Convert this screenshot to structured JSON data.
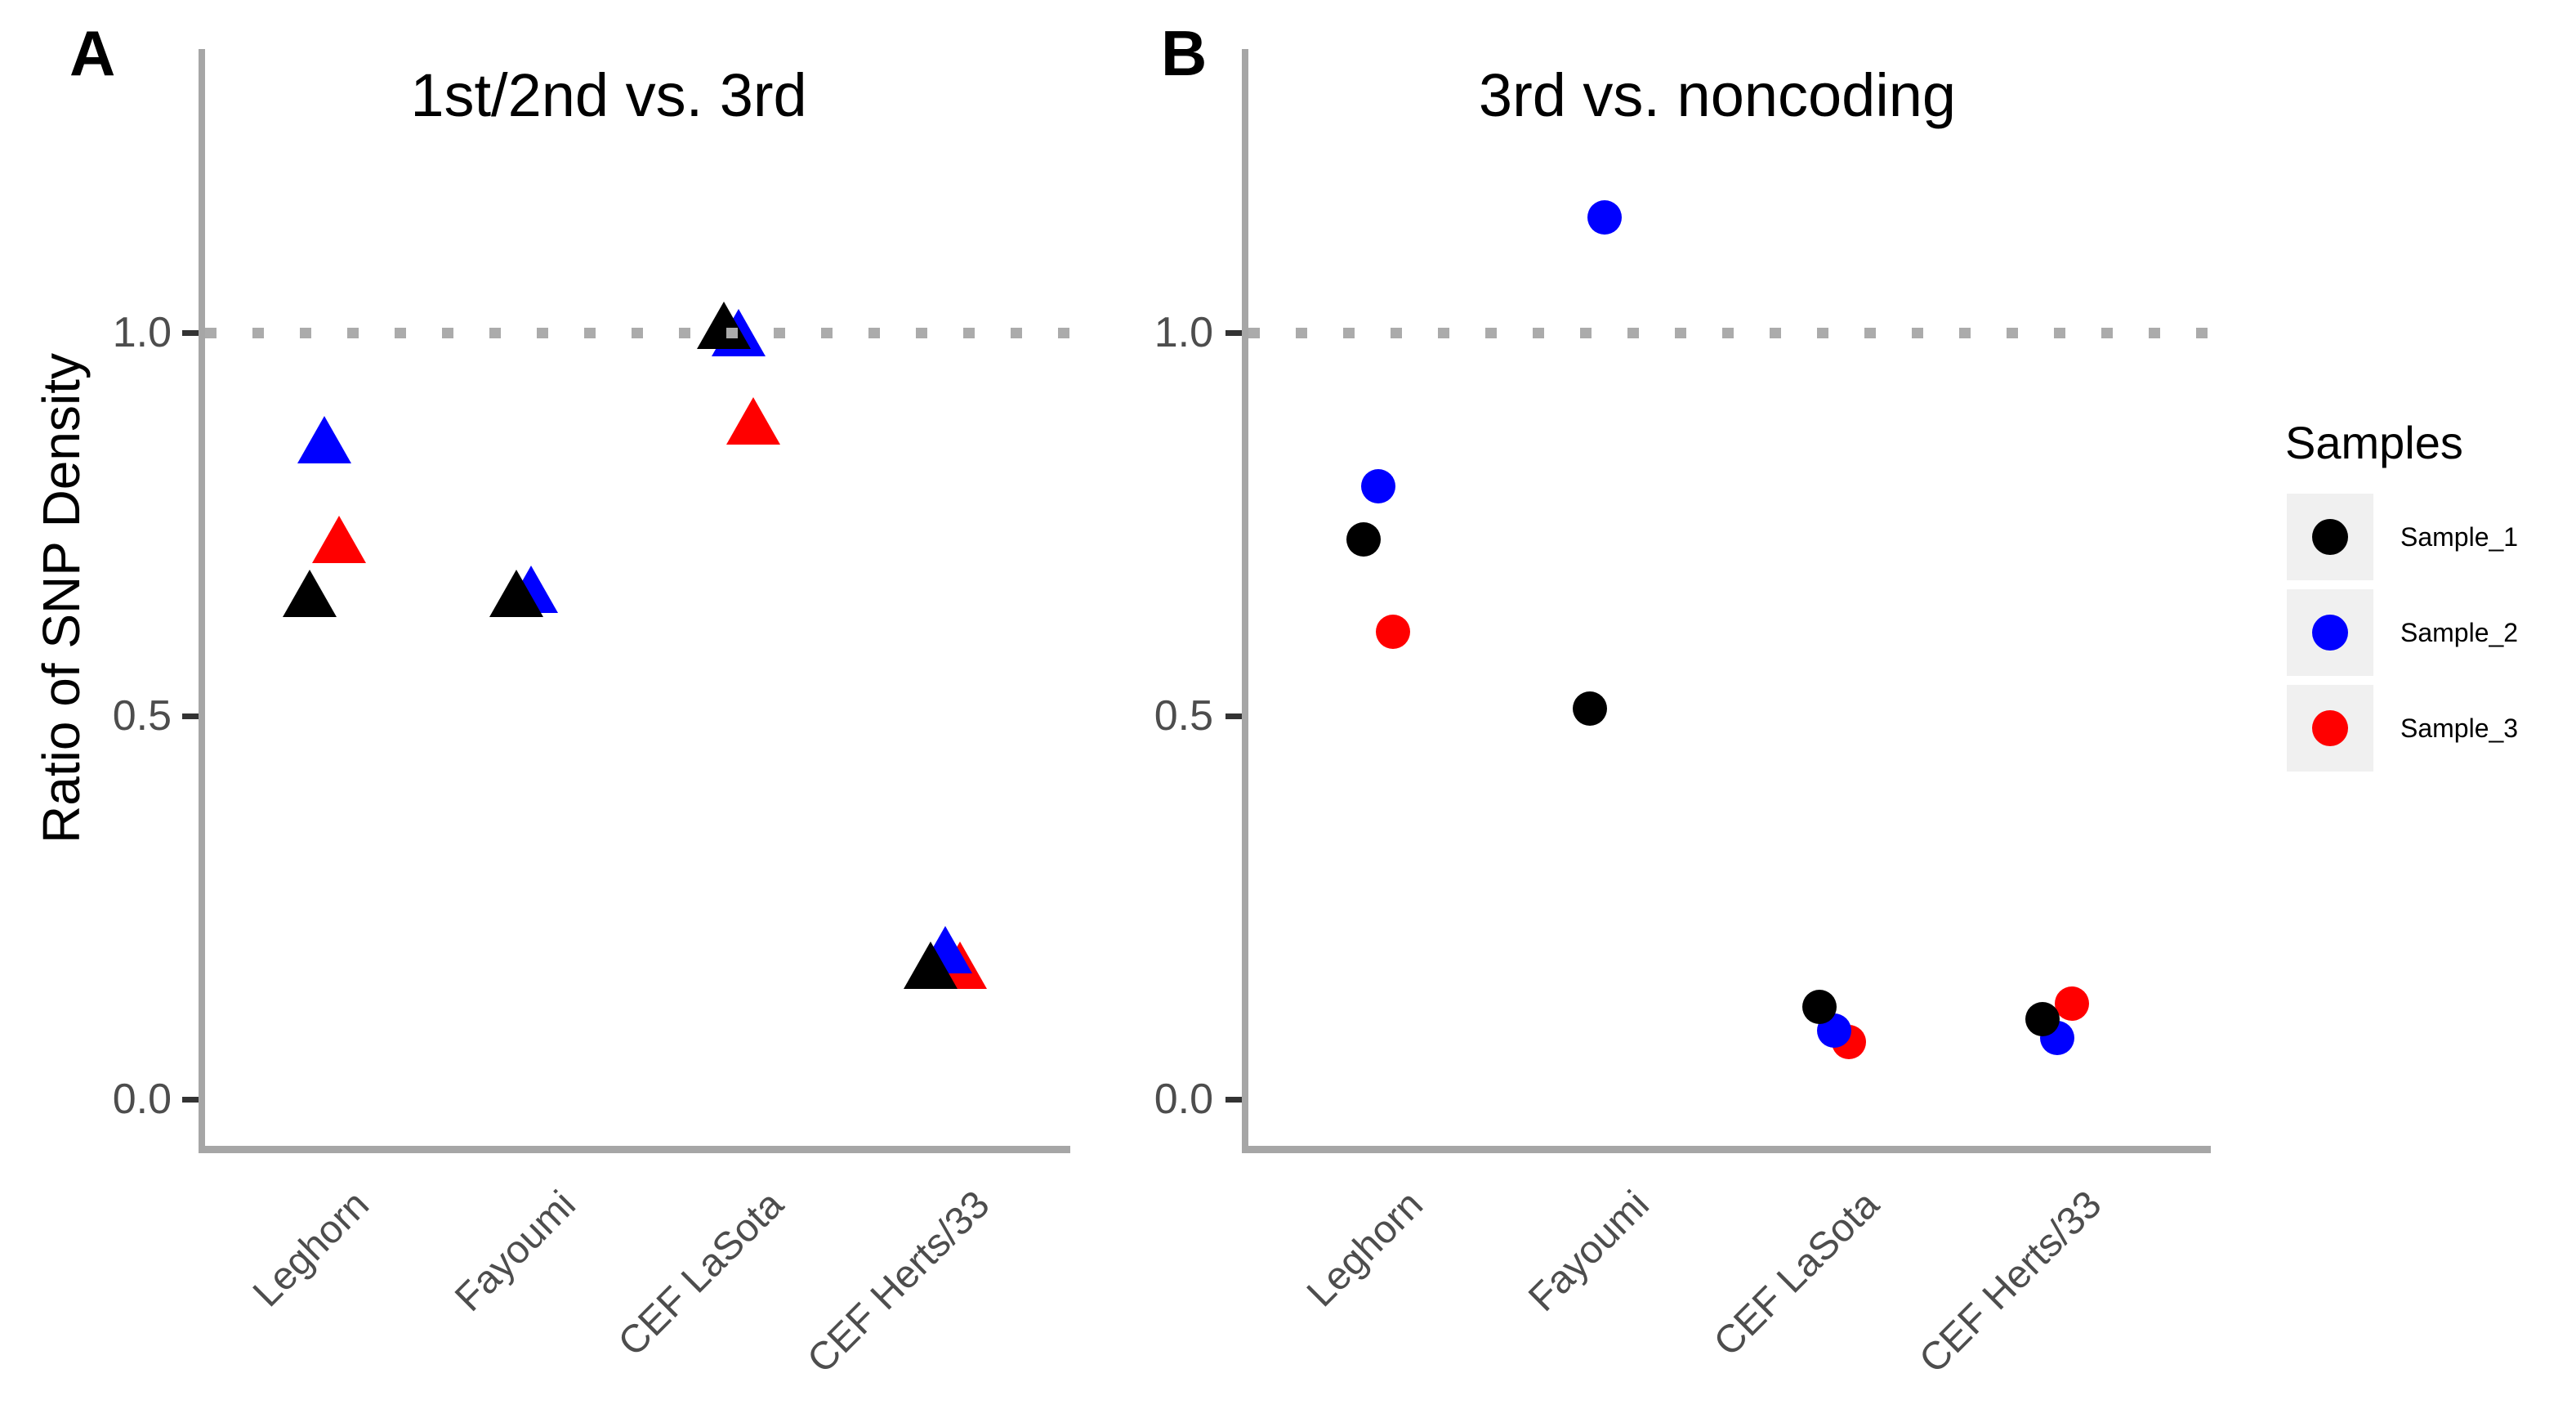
{
  "figure": {
    "panel_a_letter": "A",
    "panel_b_letter": "B",
    "y_axis_label": "Ratio of SNP Density"
  },
  "colors": {
    "sample_1": "#000000",
    "sample_2": "#0000ff",
    "sample_3": "#ff0000",
    "reference_line": "#ababab",
    "axis_line": "#a6a6a6",
    "tick_mark": "#333333",
    "tick_text": "#4d4d4d",
    "legend_key_bg": "#f0f0f0"
  },
  "chart_data": [
    {
      "type": "scatter",
      "panel": "A",
      "title": "1st/2nd vs. 3rd",
      "marker": "triangle",
      "categories": [
        "Leghorn",
        "Fayoumi",
        "CEF LaSota",
        "CEF Herts/33"
      ],
      "ylabel": "Ratio of SNP Density",
      "ylim": [
        -0.08,
        1.38
      ],
      "yticks": [
        "0.0",
        "0.5",
        "1.0"
      ],
      "reference_line_y": 1.0,
      "grid": "off",
      "series": [
        {
          "name": "Sample_1",
          "color": "#000000",
          "values": [
            0.66,
            0.66,
            1.01,
            0.175
          ]
        },
        {
          "name": "Sample_2",
          "color": "#0000ff",
          "values": [
            0.86,
            0.665,
            1.0,
            0.195
          ]
        },
        {
          "name": "Sample_3",
          "color": "#ff0000",
          "values": [
            0.73,
            null,
            0.885,
            0.175
          ]
        }
      ]
    },
    {
      "type": "scatter",
      "panel": "B",
      "title": "3rd vs. noncoding",
      "marker": "circle",
      "categories": [
        "Leghorn",
        "Fayoumi",
        "CEF LaSota",
        "CEF Herts/33"
      ],
      "ylabel": "Ratio of SNP Density",
      "ylim": [
        -0.08,
        1.38
      ],
      "yticks": [
        "0.0",
        "0.5",
        "1.0"
      ],
      "reference_line_y": 1.0,
      "grid": "off",
      "series": [
        {
          "name": "Sample_1",
          "color": "#000000",
          "values": [
            0.73,
            0.51,
            0.12,
            0.105
          ]
        },
        {
          "name": "Sample_2",
          "color": "#0000ff",
          "values": [
            0.8,
            1.15,
            0.09,
            0.08
          ]
        },
        {
          "name": "Sample_3",
          "color": "#ff0000",
          "values": [
            0.61,
            null,
            0.075,
            0.125
          ]
        }
      ]
    }
  ],
  "legend": {
    "title": "Samples",
    "position": "right",
    "items": [
      {
        "label": "Sample_1",
        "color": "#000000"
      },
      {
        "label": "Sample_2",
        "color": "#0000ff"
      },
      {
        "label": "Sample_3",
        "color": "#ff0000"
      }
    ]
  }
}
